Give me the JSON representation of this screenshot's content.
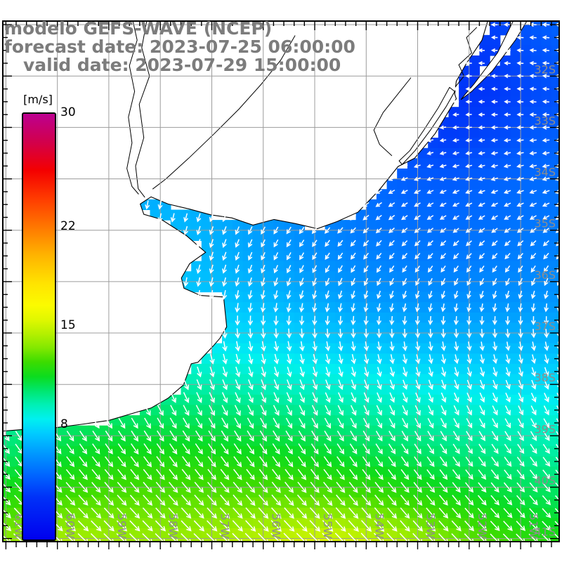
{
  "header": {
    "line1": "modelo GEFS-WAVE (NCEP)",
    "line2": "forecast date: 2023-07-25 06:00:00",
    "line3": "valid date: 2023-07-29 15:00:00",
    "color": "#7c7c7c"
  },
  "colorbar": {
    "unit": "[m/s]",
    "min": 0,
    "max": 30,
    "tick_labels": [
      {
        "v": 30,
        "label": "30"
      },
      {
        "v": 22,
        "label": "22"
      },
      {
        "v": 15,
        "label": "15"
      },
      {
        "v": 8,
        "label": "8"
      }
    ],
    "stops": [
      {
        "v": 0,
        "c": "#0000ee"
      },
      {
        "v": 3,
        "c": "#0032f8"
      },
      {
        "v": 4.5,
        "c": "#0064ff"
      },
      {
        "v": 6,
        "c": "#0096ff"
      },
      {
        "v": 7.5,
        "c": "#00ccff"
      },
      {
        "v": 8.5,
        "c": "#00f0f0"
      },
      {
        "v": 9.5,
        "c": "#00f0b4"
      },
      {
        "v": 10.5,
        "c": "#00e66e"
      },
      {
        "v": 11.5,
        "c": "#0cdc1e"
      },
      {
        "v": 12.5,
        "c": "#3cdc00"
      },
      {
        "v": 13.5,
        "c": "#82e800"
      },
      {
        "v": 14.5,
        "c": "#b4f000"
      },
      {
        "v": 15.5,
        "c": "#e1f800"
      },
      {
        "v": 16.5,
        "c": "#fbfb00"
      },
      {
        "v": 18,
        "c": "#ffe400"
      },
      {
        "v": 20,
        "c": "#ffb400"
      },
      {
        "v": 22,
        "c": "#ff7800"
      },
      {
        "v": 24,
        "c": "#ff3c00"
      },
      {
        "v": 26,
        "c": "#f40000"
      },
      {
        "v": 28,
        "c": "#d2004b"
      },
      {
        "v": 30,
        "c": "#bc0090"
      }
    ]
  },
  "map": {
    "extent": {
      "lon_west": 61.06,
      "lon_east": 50.25,
      "lat_north": 30.93,
      "lat_south": 41.06
    },
    "grid_color": "#9c9c9c",
    "coast_color": "#000000",
    "label_color": "#8d8d8d",
    "lon_lines": [
      {
        "v": 61,
        "label": "61W"
      },
      {
        "v": 60,
        "label": "60W"
      },
      {
        "v": 59,
        "label": "59W"
      },
      {
        "v": 58,
        "label": "58W"
      },
      {
        "v": 57,
        "label": "57W"
      },
      {
        "v": 56,
        "label": "56W"
      },
      {
        "v": 55,
        "label": "55W"
      },
      {
        "v": 54,
        "label": "54W"
      },
      {
        "v": 53,
        "label": "53W"
      },
      {
        "v": 52,
        "label": "52W"
      },
      {
        "v": 51,
        "label": "51W"
      }
    ],
    "lat_lines": [
      {
        "v": 31,
        "label": ""
      },
      {
        "v": 32,
        "label": "32S"
      },
      {
        "v": 33,
        "label": "33S"
      },
      {
        "v": 34,
        "label": "34S"
      },
      {
        "v": 35,
        "label": "35S"
      },
      {
        "v": 36,
        "label": "36S"
      },
      {
        "v": 37,
        "label": "37S"
      },
      {
        "v": 38,
        "label": "38S"
      },
      {
        "v": 39,
        "label": "39S"
      },
      {
        "v": 40,
        "label": "40S"
      },
      {
        "v": 41,
        "label": "41S"
      }
    ],
    "tick_step": {
      "lon_minor": 0.2,
      "lat_minor": 0.25,
      "major": 1
    }
  },
  "field": {
    "type": "heatmap+vectors",
    "units": "m/s",
    "cell_deg": 0.2,
    "arrow_step_deg": 0.25,
    "arrow_color": "#ffffff",
    "grid_lons": [
      61.2,
      60.4,
      59.6,
      58.8,
      58.0,
      57.2,
      56.4,
      55.6,
      54.8,
      54.0,
      53.2,
      52.4,
      51.6,
      50.8,
      50.0
    ],
    "grid_lats": [
      30.8,
      31.6,
      32.4,
      33.2,
      34.0,
      34.8,
      35.6,
      36.4,
      37.2,
      38.0,
      38.8,
      39.6,
      40.4,
      41.2
    ],
    "speed": [
      [
        5.0,
        5.0,
        5.0,
        5.0,
        5.0,
        5.0,
        5.0,
        5.0,
        5.0,
        4.8,
        4.4,
        3.8,
        3.4,
        4.2,
        4.6
      ],
      [
        5.5,
        5.5,
        5.5,
        5.5,
        5.5,
        5.5,
        5.3,
        5.2,
        5.0,
        4.6,
        4.0,
        3.4,
        3.2,
        3.9,
        4.3
      ],
      [
        6.0,
        6.0,
        6.0,
        6.0,
        5.8,
        5.6,
        5.4,
        5.2,
        4.8,
        4.2,
        3.4,
        3.0,
        3.1,
        3.7,
        4.1
      ],
      [
        6.3,
        6.3,
        6.2,
        6.1,
        6.0,
        5.8,
        5.5,
        5.2,
        4.8,
        4.2,
        3.6,
        3.3,
        3.6,
        4.2,
        4.5
      ],
      [
        6.5,
        6.5,
        6.4,
        6.3,
        6.2,
        6.0,
        5.7,
        5.4,
        5.0,
        4.6,
        4.3,
        4.2,
        4.4,
        4.7,
        4.8
      ],
      [
        7.0,
        7.0,
        7.0,
        7.0,
        7.0,
        6.8,
        6.3,
        5.8,
        5.4,
        5.0,
        4.8,
        4.7,
        4.8,
        5.0,
        5.1
      ],
      [
        7.3,
        7.3,
        7.3,
        7.3,
        7.2,
        7.0,
        6.6,
        6.2,
        5.8,
        5.5,
        5.3,
        5.2,
        5.3,
        5.4,
        5.5
      ],
      [
        7.6,
        7.6,
        7.6,
        7.6,
        7.5,
        7.4,
        7.2,
        6.9,
        6.5,
        6.2,
        6.0,
        5.9,
        5.9,
        6.0,
        6.0
      ],
      [
        8.3,
        8.3,
        8.3,
        8.4,
        8.4,
        8.3,
        8.1,
        7.9,
        7.6,
        7.3,
        7.1,
        7.0,
        6.9,
        6.9,
        6.9
      ],
      [
        9.3,
        9.4,
        9.5,
        9.6,
        9.7,
        9.6,
        9.4,
        9.2,
        9.0,
        8.8,
        8.5,
        8.3,
        8.1,
        8.0,
        8.0
      ],
      [
        9.8,
        10.2,
        10.6,
        10.8,
        10.9,
        10.9,
        10.8,
        10.6,
        10.4,
        10.1,
        9.9,
        9.6,
        9.4,
        9.2,
        9.1
      ],
      [
        10.8,
        11.3,
        11.7,
        12.0,
        12.1,
        12.1,
        12.0,
        11.9,
        11.7,
        11.4,
        11.1,
        10.8,
        10.5,
        10.2,
        10.0
      ],
      [
        12.3,
        12.8,
        13.0,
        13.1,
        13.1,
        13.2,
        13.3,
        13.4,
        13.4,
        13.1,
        12.7,
        12.2,
        11.7,
        11.2,
        10.9
      ],
      [
        13.8,
        14.8,
        14.6,
        14.3,
        14.2,
        14.4,
        14.9,
        15.4,
        15.8,
        15.4,
        14.7,
        13.8,
        13.0,
        12.4,
        12.0
      ]
    ],
    "dir_to_deg": [
      [
        180,
        180,
        180,
        180,
        185,
        190,
        200,
        215,
        230,
        245,
        258,
        266,
        270,
        272,
        274
      ],
      [
        178,
        178,
        180,
        183,
        188,
        195,
        205,
        220,
        235,
        250,
        262,
        268,
        272,
        274,
        276
      ],
      [
        176,
        177,
        180,
        184,
        190,
        198,
        208,
        222,
        238,
        252,
        262,
        268,
        272,
        274,
        275
      ],
      [
        176,
        177,
        180,
        185,
        191,
        199,
        209,
        222,
        236,
        248,
        257,
        262,
        265,
        266,
        266
      ],
      [
        177,
        178,
        181,
        186,
        192,
        199,
        208,
        219,
        231,
        241,
        248,
        252,
        254,
        255,
        255
      ],
      [
        178,
        180,
        183,
        187,
        192,
        198,
        205,
        213,
        222,
        229,
        234,
        237,
        238,
        238,
        238
      ],
      [
        180,
        182,
        185,
        188,
        192,
        196,
        201,
        207,
        212,
        216,
        219,
        220,
        220,
        219,
        218
      ],
      [
        178,
        180,
        182,
        184,
        186,
        188,
        190,
        192,
        193,
        194,
        194,
        193,
        192,
        190,
        188
      ],
      [
        168,
        168,
        168,
        169,
        169,
        170,
        170,
        171,
        171,
        172,
        172,
        172,
        171,
        170,
        169
      ],
      [
        156,
        156,
        156,
        157,
        157,
        158,
        158,
        159,
        159,
        160,
        160,
        160,
        159,
        158,
        157
      ],
      [
        148,
        148,
        148,
        148,
        149,
        149,
        150,
        150,
        150,
        151,
        151,
        151,
        150,
        150,
        149
      ],
      [
        142,
        142,
        142,
        142,
        143,
        143,
        143,
        144,
        144,
        144,
        144,
        144,
        143,
        143,
        142
      ],
      [
        137,
        137,
        137,
        138,
        138,
        138,
        139,
        139,
        139,
        140,
        140,
        140,
        139,
        139,
        138
      ],
      [
        133,
        133,
        133,
        134,
        134,
        134,
        135,
        135,
        135,
        136,
        136,
        136,
        135,
        135,
        134
      ]
    ]
  },
  "geo": {
    "land": [
      [
        51.6,
        30.8
      ],
      [
        51.75,
        31.3
      ],
      [
        52.05,
        31.75
      ],
      [
        52.25,
        32.1
      ],
      [
        52.28,
        32.35
      ],
      [
        52.25,
        32.44
      ],
      [
        52.66,
        33.12
      ],
      [
        53.06,
        33.6
      ],
      [
        53.38,
        33.76
      ],
      [
        53.75,
        34.22
      ],
      [
        54.16,
        34.65
      ],
      [
        54.56,
        34.83
      ],
      [
        54.95,
        34.97
      ],
      [
        55.38,
        34.87
      ],
      [
        55.79,
        34.79
      ],
      [
        56.2,
        34.9
      ],
      [
        56.61,
        34.76
      ],
      [
        57.02,
        34.7
      ],
      [
        57.43,
        34.59
      ],
      [
        57.85,
        34.49
      ],
      [
        58.18,
        34.35
      ],
      [
        58.39,
        34.49
      ],
      [
        58.32,
        34.69
      ],
      [
        57.98,
        34.79
      ],
      [
        57.5,
        35.1
      ],
      [
        57.12,
        35.43
      ],
      [
        57.43,
        35.65
      ],
      [
        57.59,
        35.93
      ],
      [
        57.54,
        36.13
      ],
      [
        57.22,
        36.27
      ],
      [
        56.77,
        36.3
      ],
      [
        56.71,
        36.88
      ],
      [
        56.84,
        37.1
      ],
      [
        56.97,
        37.25
      ],
      [
        57.27,
        37.57
      ],
      [
        57.4,
        37.6
      ],
      [
        57.55,
        38.01
      ],
      [
        57.85,
        38.27
      ],
      [
        58.18,
        38.46
      ],
      [
        58.49,
        38.55
      ],
      [
        59.0,
        38.7
      ],
      [
        59.48,
        38.77
      ],
      [
        60.01,
        38.84
      ],
      [
        60.57,
        38.87
      ],
      [
        61.2,
        38.92
      ],
      [
        61.2,
        30.8
      ]
    ],
    "spit": [
      [
        50.8,
        30.8
      ],
      [
        51.1,
        31.3
      ],
      [
        51.55,
        31.9
      ],
      [
        51.95,
        32.3
      ],
      [
        52.16,
        32.46
      ],
      [
        52.08,
        32.36
      ],
      [
        51.9,
        32.15
      ],
      [
        51.45,
        31.55
      ],
      [
        51.08,
        30.8
      ]
    ],
    "lagoon_mirim": [
      [
        53.3,
        33.72
      ],
      [
        53.05,
        33.45
      ],
      [
        52.75,
        33.05
      ],
      [
        52.45,
        32.6
      ],
      [
        52.28,
        32.3
      ],
      [
        52.38,
        32.22
      ],
      [
        52.6,
        32.62
      ],
      [
        52.88,
        33.05
      ],
      [
        53.15,
        33.45
      ],
      [
        53.36,
        33.65
      ]
    ],
    "rivers": [
      [
        [
          58.25,
          30.85
        ],
        [
          58.36,
          31.45
        ],
        [
          58.21,
          32.0
        ],
        [
          58.41,
          32.55
        ],
        [
          58.32,
          33.2
        ],
        [
          58.48,
          33.75
        ],
        [
          58.43,
          34.19
        ],
        [
          58.3,
          34.36
        ]
      ],
      [
        [
          58.55,
          30.85
        ],
        [
          58.45,
          31.3
        ],
        [
          58.6,
          31.8
        ],
        [
          58.5,
          32.3
        ],
        [
          58.62,
          32.8
        ],
        [
          58.55,
          33.3
        ],
        [
          58.65,
          33.8
        ],
        [
          58.55,
          34.15
        ],
        [
          58.42,
          34.3
        ]
      ],
      [
        [
          55.38,
          31.21
        ],
        [
          55.66,
          31.69
        ],
        [
          56.04,
          32.16
        ],
        [
          56.47,
          32.64
        ],
        [
          56.95,
          33.12
        ],
        [
          57.45,
          33.6
        ],
        [
          57.9,
          34.01
        ],
        [
          58.15,
          34.2
        ]
      ],
      [
        [
          53.13,
          32.03
        ],
        [
          53.4,
          32.37
        ],
        [
          53.67,
          32.71
        ],
        [
          53.85,
          33.05
        ],
        [
          53.74,
          33.33
        ],
        [
          53.5,
          33.55
        ]
      ],
      [
        [
          51.85,
          31.05
        ],
        [
          52.05,
          31.25
        ],
        [
          51.95,
          31.55
        ],
        [
          52.2,
          31.78
        ],
        [
          52.1,
          32.0
        ],
        [
          52.26,
          32.2
        ]
      ]
    ]
  }
}
